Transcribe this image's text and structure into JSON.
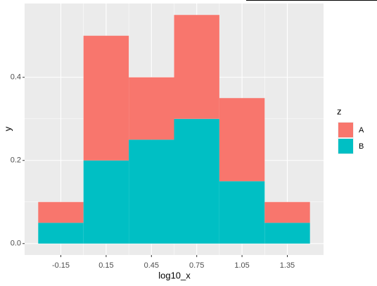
{
  "chart_data": {
    "type": "histogram",
    "xlabel": "log10_x",
    "ylabel": "y",
    "legend_title": "z",
    "bins": [
      -0.3,
      0,
      0.3,
      0.6,
      0.9,
      1.2,
      1.5
    ],
    "series": [
      {
        "name": "A",
        "color": "#F8766D",
        "values": [
          0.05,
          0.3,
          0.15,
          0.25,
          0.2,
          0.05
        ]
      },
      {
        "name": "B",
        "color": "#00BFC4",
        "values": [
          0.05,
          0.2,
          0.25,
          0.3,
          0.15,
          0.05
        ]
      }
    ],
    "stacked": true,
    "xlim": [
      -0.39,
      1.59
    ],
    "xticks": [
      -0.15,
      0.15,
      0.45,
      0.75,
      1.05,
      1.35
    ],
    "ylim": [
      -0.0275,
      0.5775
    ],
    "yticks": [
      {
        "value": 0,
        "label": "0.0"
      },
      {
        "value": 0.2,
        "label": "0.2"
      },
      {
        "value": 0.4,
        "label": "0.4"
      }
    ],
    "grid": true,
    "legend": "right"
  }
}
